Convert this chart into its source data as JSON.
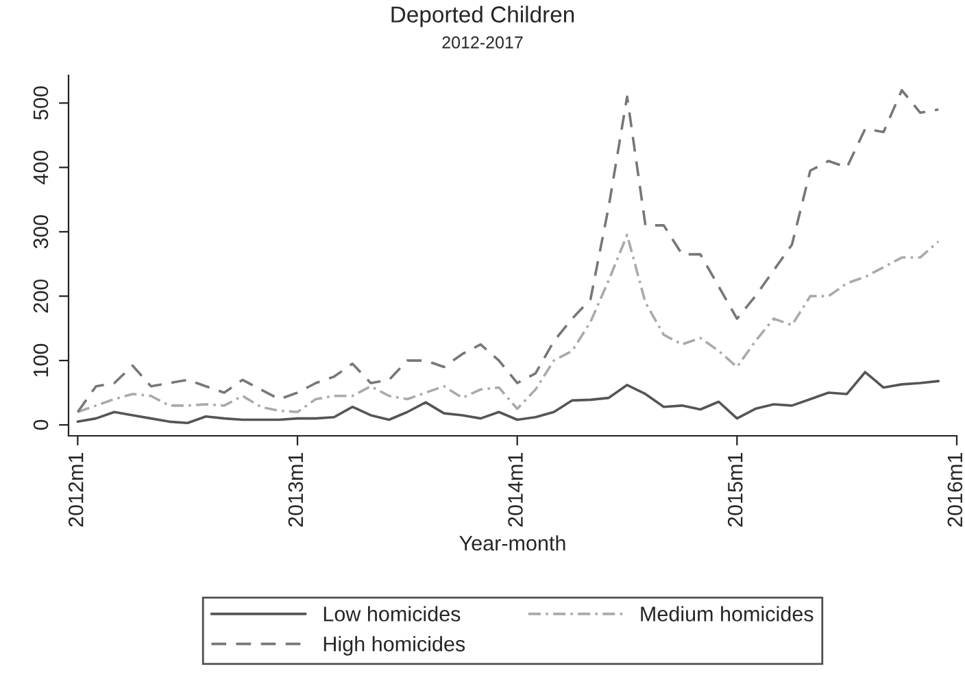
{
  "chart_data": {
    "type": "line",
    "title": "Deported Children",
    "subtitle": "2012-2017",
    "xlabel": "Year-month",
    "x": [
      "2012-01",
      "2012-02",
      "2012-03",
      "2012-04",
      "2012-05",
      "2012-06",
      "2012-07",
      "2012-08",
      "2012-09",
      "2012-10",
      "2012-11",
      "2012-12",
      "2013-01",
      "2013-02",
      "2013-03",
      "2013-04",
      "2013-05",
      "2013-06",
      "2013-07",
      "2013-08",
      "2013-09",
      "2013-10",
      "2013-11",
      "2013-12",
      "2014-01",
      "2014-02",
      "2014-03",
      "2014-04",
      "2014-05",
      "2014-06",
      "2014-07",
      "2014-08",
      "2014-09",
      "2014-10",
      "2014-11",
      "2014-12",
      "2015-01",
      "2015-02",
      "2015-03",
      "2015-04",
      "2015-05",
      "2015-06",
      "2015-07",
      "2015-08",
      "2015-09",
      "2015-10",
      "2015-11",
      "2015-12"
    ],
    "series": [
      {
        "name": "Low homicides",
        "color": "#555555",
        "line_style": "solid",
        "values": [
          5,
          10,
          20,
          15,
          10,
          5,
          3,
          13,
          10,
          8,
          8,
          8,
          10,
          10,
          12,
          28,
          15,
          8,
          20,
          35,
          18,
          15,
          10,
          20,
          8,
          12,
          20,
          38,
          39,
          42,
          62,
          48,
          28,
          30,
          24,
          36,
          10,
          25,
          32,
          30,
          40,
          50,
          48,
          82,
          58,
          63,
          65,
          68
        ]
      },
      {
        "name": "Medium homicides",
        "color": "#aaaaaa",
        "line_style": "dashdot",
        "values": [
          20,
          30,
          40,
          48,
          45,
          30,
          30,
          32,
          30,
          45,
          28,
          22,
          20,
          40,
          45,
          45,
          60,
          45,
          40,
          50,
          60,
          42,
          55,
          58,
          25,
          55,
          100,
          115,
          160,
          225,
          295,
          190,
          140,
          125,
          135,
          115,
          90,
          130,
          165,
          155,
          200,
          200,
          220,
          230,
          245,
          260,
          260,
          285
        ]
      },
      {
        "name": "High homicides",
        "color": "#777777",
        "line_style": "dashed",
        "values": [
          20,
          60,
          65,
          92,
          60,
          65,
          70,
          60,
          50,
          70,
          55,
          40,
          50,
          65,
          75,
          95,
          65,
          70,
          100,
          100,
          90,
          110,
          125,
          100,
          65,
          80,
          130,
          165,
          195,
          340,
          510,
          310,
          310,
          265,
          265,
          215,
          165,
          200,
          240,
          280,
          395,
          410,
          400,
          460,
          455,
          520,
          485,
          490
        ]
      }
    ],
    "xlim": [
      "2011-12-16",
      "2016-01"
    ],
    "xticks": [
      {
        "value": "2012-01",
        "label": "2012m1"
      },
      {
        "value": "2013-01",
        "label": "2013m1"
      },
      {
        "value": "2014-01",
        "label": "2014m1"
      },
      {
        "value": "2015-01",
        "label": "2015m1"
      },
      {
        "value": "2016-01",
        "label": "2016m1"
      }
    ],
    "ylim": [
      -17,
      543
    ],
    "yticks": [
      0,
      100,
      200,
      300,
      400,
      500
    ],
    "grid": false,
    "legend": "bottom",
    "marker": "none"
  }
}
